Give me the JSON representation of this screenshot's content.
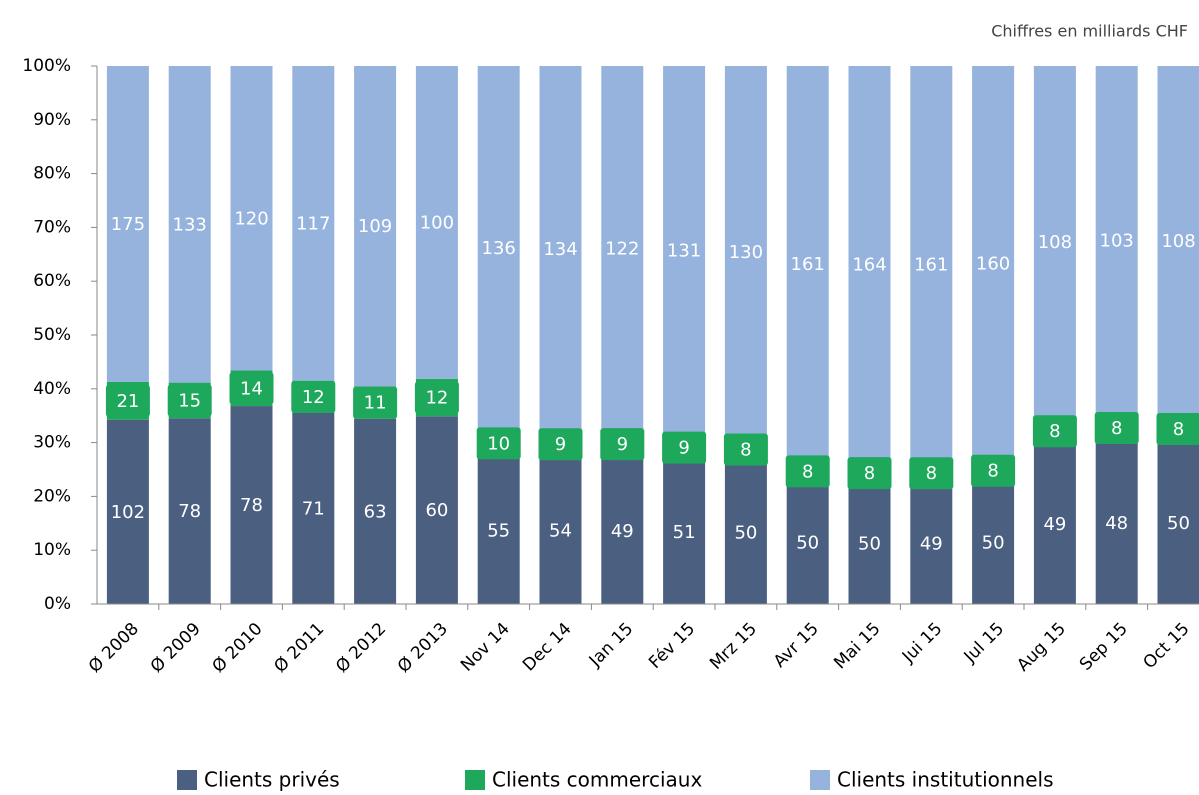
{
  "chart_data": {
    "type": "bar",
    "stacking": "percent",
    "note": "Chiffres en milliards CHF",
    "categories": [
      "Ø 2008",
      "Ø 2009",
      "Ø 2010",
      "Ø 2011",
      "Ø 2012",
      "Ø 2013",
      "Nov 14",
      "Dec 14",
      "Jan 15",
      "Fév 15",
      "Mrz 15",
      "Avr 15",
      "Mai 15",
      "Jui 15",
      "Jul 15",
      "Aug 15",
      "Sep 15",
      "Oct 15"
    ],
    "series": [
      {
        "name": "Clients privés",
        "color": "#4b5f80",
        "values": [
          102,
          78,
          78,
          71,
          63,
          60,
          55,
          54,
          49,
          51,
          50,
          50,
          50,
          49,
          50,
          49,
          48,
          50
        ]
      },
      {
        "name": "Clients commerciaux",
        "color": "#1ea85b",
        "values": [
          21,
          15,
          14,
          12,
          11,
          12,
          10,
          9,
          9,
          9,
          8,
          8,
          8,
          8,
          8,
          8,
          8,
          8
        ]
      },
      {
        "name": "Clients institutionnels",
        "color": "#95b3dd",
        "values": [
          175,
          133,
          120,
          117,
          109,
          100,
          136,
          134,
          122,
          131,
          130,
          161,
          164,
          161,
          160,
          108,
          103,
          108
        ]
      }
    ],
    "ylim": [
      0,
      100
    ],
    "yticks": [
      {
        "value": 0,
        "label": "0%"
      },
      {
        "value": 10,
        "label": "10%"
      },
      {
        "value": 20,
        "label": "20%"
      },
      {
        "value": 30,
        "label": "30%"
      },
      {
        "value": 40,
        "label": "40%"
      },
      {
        "value": 50,
        "label": "50%"
      },
      {
        "value": 60,
        "label": "60%"
      },
      {
        "value": 70,
        "label": "70%"
      },
      {
        "value": 80,
        "label": "80%"
      },
      {
        "value": 90,
        "label": "90%"
      },
      {
        "value": 100,
        "label": "100%"
      }
    ],
    "legend": "bottom"
  }
}
